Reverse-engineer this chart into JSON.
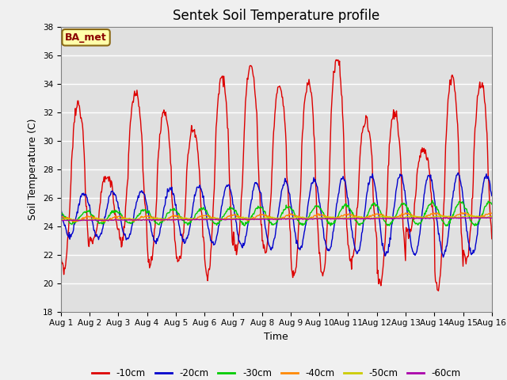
{
  "title": "Sentek Soil Temperature profile",
  "xlabel": "Time",
  "ylabel": "Soil Temperature (C)",
  "annotation": "BA_met",
  "ylim": [
    18,
    38
  ],
  "yticks": [
    18,
    20,
    22,
    24,
    26,
    28,
    30,
    32,
    34,
    36,
    38
  ],
  "x_labels": [
    "Aug 1",
    "Aug 2",
    "Aug 3",
    "Aug 4",
    "Aug 5",
    "Aug 6",
    "Aug 7",
    "Aug 8",
    "Aug 9",
    "Aug 10",
    "Aug 11",
    "Aug 12",
    "Aug 13",
    "Aug 14",
    "Aug 15",
    "Aug 16"
  ],
  "colors": {
    "-10cm": "#dd0000",
    "-20cm": "#0000cc",
    "-30cm": "#00cc00",
    "-40cm": "#ff8800",
    "-50cm": "#cccc00",
    "-60cm": "#aa00aa"
  },
  "background_color": "#e0e0e0",
  "fig_facecolor": "#f0f0f0"
}
